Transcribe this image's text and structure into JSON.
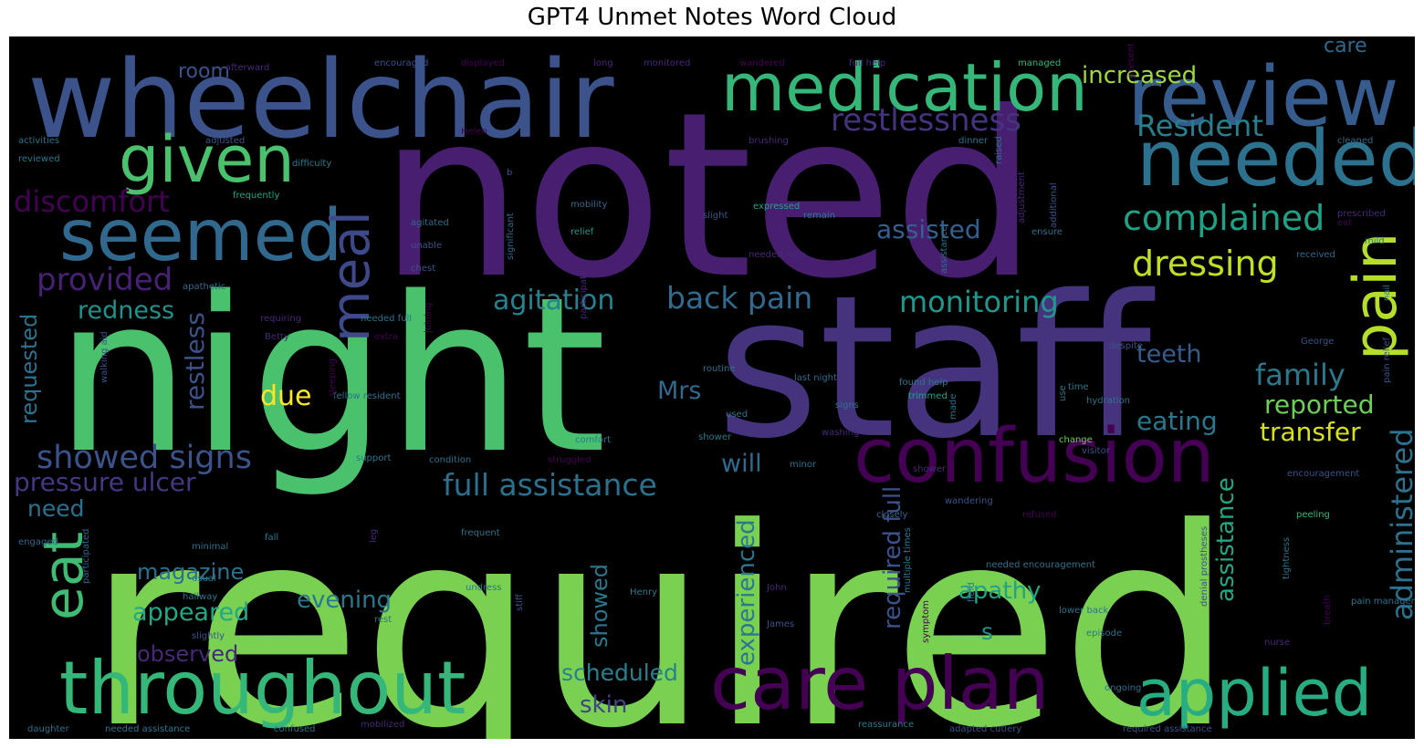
{
  "chart_data": {
    "type": "wordcloud",
    "title": "GPT4 Unmet Notes Word Cloud",
    "background": "#000000",
    "palette": [
      "#440154",
      "#482878",
      "#3e4989",
      "#31688e",
      "#26828e",
      "#1f9e89",
      "#35b779",
      "#6ece58",
      "#b5de2b",
      "#fde725"
    ],
    "words": [
      {
        "text": "required",
        "weight": 1.0,
        "color": "#7ad151"
      },
      {
        "text": "noted",
        "weight": 0.95,
        "color": "#481f70"
      },
      {
        "text": "night",
        "weight": 0.9,
        "color": "#4ac16d"
      },
      {
        "text": "staff",
        "weight": 0.85,
        "color": "#46337e"
      },
      {
        "text": "wheelchair",
        "weight": 0.55,
        "color": "#3b528b"
      },
      {
        "text": "review",
        "weight": 0.45,
        "color": "#365c8d"
      },
      {
        "text": "needed",
        "weight": 0.42,
        "color": "#2c728e"
      },
      {
        "text": "medication",
        "weight": 0.38,
        "color": "#35b779"
      },
      {
        "text": "seemed",
        "weight": 0.4,
        "color": "#31688e"
      },
      {
        "text": "given",
        "weight": 0.35,
        "color": "#4ac16d"
      },
      {
        "text": "confusion",
        "weight": 0.4,
        "color": "#440154"
      },
      {
        "text": "throughout",
        "weight": 0.38,
        "color": "#35b779"
      },
      {
        "text": "care plan",
        "weight": 0.38,
        "color": "#440154"
      },
      {
        "text": "applied",
        "weight": 0.33,
        "color": "#27ad81"
      },
      {
        "text": "pain",
        "weight": 0.33,
        "color": "#b5de2b"
      },
      {
        "text": "meal",
        "weight": 0.3,
        "color": "#3e4989"
      },
      {
        "text": "eat",
        "weight": 0.3,
        "color": "#3fbc73"
      },
      {
        "text": "complained",
        "weight": 0.22,
        "color": "#1fa187"
      },
      {
        "text": "dressing",
        "weight": 0.22,
        "color": "#c2df23"
      },
      {
        "text": "restlessness",
        "weight": 0.2,
        "color": "#46337e"
      },
      {
        "text": "Resident",
        "weight": 0.2,
        "color": "#277f8e"
      },
      {
        "text": "discomfort",
        "weight": 0.2,
        "color": "#440154"
      },
      {
        "text": "provided",
        "weight": 0.2,
        "color": "#482173"
      },
      {
        "text": "showed signs",
        "weight": 0.2,
        "color": "#3b528b"
      },
      {
        "text": "pressure ulcer",
        "weight": 0.17,
        "color": "#453781"
      },
      {
        "text": "full assistance",
        "weight": 0.2,
        "color": "#2d708e"
      },
      {
        "text": "back pain",
        "weight": 0.2,
        "color": "#306a8e"
      },
      {
        "text": "monitoring",
        "weight": 0.2,
        "color": "#1f988b"
      },
      {
        "text": "agitation",
        "weight": 0.18,
        "color": "#26828e"
      },
      {
        "text": "assisted",
        "weight": 0.16,
        "color": "#355f8d"
      },
      {
        "text": "family",
        "weight": 0.2,
        "color": "#2a788e"
      },
      {
        "text": "administered",
        "weight": 0.2,
        "color": "#2c728e"
      },
      {
        "text": "reported",
        "weight": 0.16,
        "color": "#6ece58"
      },
      {
        "text": "transfer",
        "weight": 0.16,
        "color": "#d8e219"
      },
      {
        "text": "eating",
        "weight": 0.16,
        "color": "#2a788e"
      },
      {
        "text": "increased",
        "weight": 0.16,
        "color": "#9fda3a"
      },
      {
        "text": "redness",
        "weight": 0.15,
        "color": "#21918c"
      },
      {
        "text": "due",
        "weight": 0.16,
        "color": "#fde725"
      },
      {
        "text": "restless",
        "weight": 0.15,
        "color": "#3b528b"
      },
      {
        "text": "requested",
        "weight": 0.14,
        "color": "#2c728e"
      },
      {
        "text": "teeth",
        "weight": 0.16,
        "color": "#365c8d"
      },
      {
        "text": "Mrs",
        "weight": 0.15,
        "color": "#31688e"
      },
      {
        "text": "will",
        "weight": 0.15,
        "color": "#31688e"
      },
      {
        "text": "required full",
        "weight": 0.14,
        "color": "#3b528b"
      },
      {
        "text": "experienced",
        "weight": 0.14,
        "color": "#2a788e"
      },
      {
        "text": "assistance",
        "weight": 0.14,
        "color": "#22a884"
      },
      {
        "text": "apathy",
        "weight": 0.15,
        "color": "#20a486"
      },
      {
        "text": "evening",
        "weight": 0.15,
        "color": "#2a788e"
      },
      {
        "text": "magazine",
        "weight": 0.14,
        "color": "#2c728e"
      },
      {
        "text": "appeared",
        "weight": 0.15,
        "color": "#22a884"
      },
      {
        "text": "observed",
        "weight": 0.14,
        "color": "#482878"
      },
      {
        "text": "showed",
        "weight": 0.14,
        "color": "#2a788e"
      },
      {
        "text": "scheduled",
        "weight": 0.14,
        "color": "#26828e"
      },
      {
        "text": "skin",
        "weight": 0.15,
        "color": "#414487"
      },
      {
        "text": "need",
        "weight": 0.14,
        "color": "#2d708e"
      },
      {
        "text": "room",
        "weight": 0.12,
        "color": "#3b528b"
      },
      {
        "text": "care",
        "weight": 0.12,
        "color": "#31688e"
      },
      {
        "text": "s",
        "weight": 0.12,
        "color": "#21918c"
      },
      {
        "text": "afterward",
        "weight": 0.05,
        "color": "#482878"
      },
      {
        "text": "encouraged",
        "weight": 0.05,
        "color": "#3b528b"
      },
      {
        "text": "displayed",
        "weight": 0.05,
        "color": "#440154"
      },
      {
        "text": "long",
        "weight": 0.05,
        "color": "#482878"
      },
      {
        "text": "monitored",
        "weight": 0.05,
        "color": "#482878"
      },
      {
        "text": "wandered",
        "weight": 0.05,
        "color": "#440154"
      },
      {
        "text": "full help",
        "weight": 0.05,
        "color": "#482878"
      },
      {
        "text": "managed",
        "weight": 0.05,
        "color": "#35b779"
      },
      {
        "text": "activities",
        "weight": 0.05,
        "color": "#2c728e"
      },
      {
        "text": "adjusted",
        "weight": 0.05,
        "color": "#3b528b"
      },
      {
        "text": "reviewed",
        "weight": 0.05,
        "color": "#2a788e"
      },
      {
        "text": "difficulty",
        "weight": 0.05,
        "color": "#2a788e"
      },
      {
        "text": "frequently",
        "weight": 0.05,
        "color": "#20a486"
      },
      {
        "text": "mobility",
        "weight": 0.05,
        "color": "#31688e"
      },
      {
        "text": "agitated",
        "weight": 0.05,
        "color": "#31688e"
      },
      {
        "text": "unable",
        "weight": 0.05,
        "color": "#3b528b"
      },
      {
        "text": "chest",
        "weight": 0.05,
        "color": "#3b528b"
      },
      {
        "text": "apathetic",
        "weight": 0.05,
        "color": "#31688e"
      },
      {
        "text": "significant",
        "weight": 0.05,
        "color": "#31688e"
      },
      {
        "text": "relief",
        "weight": 0.05,
        "color": "#1f988b"
      },
      {
        "text": "slight",
        "weight": 0.05,
        "color": "#3b528b"
      },
      {
        "text": "expressed",
        "weight": 0.05,
        "color": "#20a486"
      },
      {
        "text": "remain",
        "weight": 0.05,
        "color": "#2a788e"
      },
      {
        "text": "brushing",
        "weight": 0.05,
        "color": "#482878"
      },
      {
        "text": "dinner",
        "weight": 0.05,
        "color": "#2c728e"
      },
      {
        "text": "cleaned",
        "weight": 0.05,
        "color": "#31688e"
      },
      {
        "text": "prescribed",
        "weight": 0.05,
        "color": "#482878"
      },
      {
        "text": "needed help",
        "weight": 0.05,
        "color": "#482878"
      },
      {
        "text": "received",
        "weight": 0.05,
        "color": "#31688e"
      },
      {
        "text": "additional",
        "weight": 0.05,
        "color": "#3b528b"
      },
      {
        "text": "requiring",
        "weight": 0.05,
        "color": "#482878"
      },
      {
        "text": "needed full",
        "weight": 0.05,
        "color": "#2c728e"
      },
      {
        "text": "extra",
        "weight": 0.05,
        "color": "#440154"
      },
      {
        "text": "Betty",
        "weight": 0.05,
        "color": "#482878"
      },
      {
        "text": "routine",
        "weight": 0.05,
        "color": "#2c728e"
      },
      {
        "text": "last night",
        "weight": 0.05,
        "color": "#31688e"
      },
      {
        "text": "found help",
        "weight": 0.05,
        "color": "#2a788e"
      },
      {
        "text": "trimmed",
        "weight": 0.05,
        "color": "#20a486"
      },
      {
        "text": "despite",
        "weight": 0.05,
        "color": "#3b528b"
      },
      {
        "text": "George",
        "weight": 0.05,
        "color": "#3b528b"
      },
      {
        "text": "time",
        "weight": 0.05,
        "color": "#2a788e"
      },
      {
        "text": "hydration",
        "weight": 0.05,
        "color": "#2c728e"
      },
      {
        "text": "shower",
        "weight": 0.05,
        "color": "#2a788e"
      },
      {
        "text": "comfort",
        "weight": 0.05,
        "color": "#2a788e"
      },
      {
        "text": "used",
        "weight": 0.05,
        "color": "#2a788e"
      },
      {
        "text": "signs",
        "weight": 0.05,
        "color": "#2c728e"
      },
      {
        "text": "washing",
        "weight": 0.05,
        "color": "#482878"
      },
      {
        "text": "change",
        "weight": 0.05,
        "color": "#6ece58"
      },
      {
        "text": "visitor",
        "weight": 0.05,
        "color": "#3b528b"
      },
      {
        "text": "support",
        "weight": 0.05,
        "color": "#2a788e"
      },
      {
        "text": "condition",
        "weight": 0.05,
        "color": "#2c728e"
      },
      {
        "text": "struggled",
        "weight": 0.05,
        "color": "#440154"
      },
      {
        "text": "minor",
        "weight": 0.05,
        "color": "#2c728e"
      },
      {
        "text": "encouragement",
        "weight": 0.05,
        "color": "#3b528b"
      },
      {
        "text": "wandering",
        "weight": 0.05,
        "color": "#3b528b"
      },
      {
        "text": "closely",
        "weight": 0.05,
        "color": "#31688e"
      },
      {
        "text": "refused",
        "weight": 0.05,
        "color": "#440154"
      },
      {
        "text": "peeling",
        "weight": 0.05,
        "color": "#35b779"
      },
      {
        "text": "frequent",
        "weight": 0.05,
        "color": "#2c728e"
      },
      {
        "text": "usual",
        "weight": 0.05,
        "color": "#2a788e"
      },
      {
        "text": "fall",
        "weight": 0.05,
        "color": "#2a788e"
      },
      {
        "text": "engaged",
        "weight": 0.05,
        "color": "#31688e"
      },
      {
        "text": "minimal",
        "weight": 0.05,
        "color": "#2c728e"
      },
      {
        "text": "leg",
        "weight": 0.05,
        "color": "#482878"
      },
      {
        "text": "John",
        "weight": 0.05,
        "color": "#482878"
      },
      {
        "text": "undress",
        "weight": 0.05,
        "color": "#2c728e"
      },
      {
        "text": "Henry",
        "weight": 0.05,
        "color": "#2a788e"
      },
      {
        "text": "hallway",
        "weight": 0.05,
        "color": "#2a788e"
      },
      {
        "text": "slightly",
        "weight": 0.05,
        "color": "#3b528b"
      },
      {
        "text": "rest",
        "weight": 0.05,
        "color": "#2c728e"
      },
      {
        "text": "James",
        "weight": 0.05,
        "color": "#3b528b"
      },
      {
        "text": "lower back",
        "weight": 0.05,
        "color": "#2c728e"
      },
      {
        "text": "episode",
        "weight": 0.05,
        "color": "#2c728e"
      },
      {
        "text": "nurse",
        "weight": 0.05,
        "color": "#482878"
      },
      {
        "text": "denial prostheses",
        "weight": 0.05,
        "color": "#3b528b"
      },
      {
        "text": "ongoing",
        "weight": 0.05,
        "color": "#2c728e"
      },
      {
        "text": "daughter",
        "weight": 0.05,
        "color": "#2c728e"
      },
      {
        "text": "needed assistance",
        "weight": 0.05,
        "color": "#2a788e"
      },
      {
        "text": "confused",
        "weight": 0.05,
        "color": "#2c728e"
      },
      {
        "text": "mobilized",
        "weight": 0.05,
        "color": "#482878"
      },
      {
        "text": "reassurance",
        "weight": 0.05,
        "color": "#2a788e"
      },
      {
        "text": "adapted cutlery",
        "weight": 0.05,
        "color": "#3b528b"
      },
      {
        "text": "required assistance",
        "weight": 0.05,
        "color": "#3b528b"
      },
      {
        "text": "Helen",
        "weight": 0.05,
        "color": "#440154"
      },
      {
        "text": "ensure",
        "weight": 0.05,
        "color": "#2c728e"
      },
      {
        "text": "mild",
        "weight": 0.05,
        "color": "#2a788e"
      },
      {
        "text": "nail",
        "weight": 0.05,
        "color": "#2a788e"
      },
      {
        "text": "pain relief",
        "weight": 0.05,
        "color": "#3b528b"
      },
      {
        "text": "pain management",
        "weight": 0.05,
        "color": "#2c728e"
      },
      {
        "text": "tightness",
        "weight": 0.05,
        "color": "#2c728e"
      },
      {
        "text": "multiple times",
        "weight": 0.05,
        "color": "#2a788e"
      },
      {
        "text": "symptom",
        "weight": 0.05,
        "color": "#440154"
      },
      {
        "text": "needed encouragement",
        "weight": 0.05,
        "color": "#2c728e"
      },
      {
        "text": "fluid",
        "weight": 0.05,
        "color": "#2c728e"
      },
      {
        "text": "participated",
        "weight": 0.05,
        "color": "#31688e"
      },
      {
        "text": "participate",
        "weight": 0.05,
        "color": "#482878"
      },
      {
        "text": "walking aid",
        "weight": 0.05,
        "color": "#3b528b"
      },
      {
        "text": "joining",
        "weight": 0.05,
        "color": "#440154"
      },
      {
        "text": "fellow resident",
        "weight": 0.05,
        "color": "#2c728e"
      },
      {
        "text": "adjustment",
        "weight": 0.05,
        "color": "#482878"
      },
      {
        "text": "assistance",
        "weight": 0.05,
        "color": "#2c728e"
      },
      {
        "text": "breath",
        "weight": 0.05,
        "color": "#440154"
      },
      {
        "text": "made",
        "weight": 0.05,
        "color": "#2c728e"
      },
      {
        "text": "present",
        "weight": 0.05,
        "color": "#440154"
      },
      {
        "text": "raised",
        "weight": 0.05,
        "color": "#2c728e"
      },
      {
        "text": "use",
        "weight": 0.05,
        "color": "#2a788e"
      },
      {
        "text": "b",
        "weight": 0.05,
        "color": "#3b528b"
      },
      {
        "text": "eat",
        "weight": 0.05,
        "color": "#440154"
      },
      {
        "text": "stiff",
        "weight": 0.05,
        "color": "#3b528b"
      },
      {
        "text": "sleeping",
        "weight": 0.05,
        "color": "#440154"
      },
      {
        "text": "shower",
        "weight": 0.05,
        "color": "#482878"
      }
    ]
  }
}
